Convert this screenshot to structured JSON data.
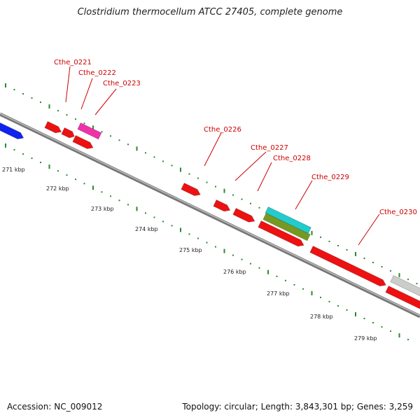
{
  "title": "Clostridium thermocellum ATCC 27405, complete genome",
  "footer": {
    "accession": "Accession: NC_009012",
    "summary": "Topology: circular; Length: 3,843,301 bp; Genes: 3,259"
  },
  "colors": {
    "backbone": "#8a8a8a",
    "tick": "#2a8a2a",
    "gene_red": "#ee1111",
    "gene_blue": "#1122ee",
    "gene_magenta": "#ee33aa",
    "gene_cyan": "#22cccc",
    "gene_olive": "#779922",
    "gene_gray": "#cccccc",
    "label": "#cc0000"
  },
  "kbp_labels": [
    "271 kbp",
    "272 kbp",
    "273 kbp",
    "274 kbp",
    "275 kbp",
    "276 kbp",
    "277 kbp",
    "278 kbp",
    "279 kbp"
  ],
  "gene_labels": [
    "Cthe_0221",
    "Cthe_0222",
    "Cthe_0223",
    "Cthe_0226",
    "Cthe_0227",
    "Cthe_0228",
    "Cthe_0229",
    "Cthe_0230"
  ]
}
